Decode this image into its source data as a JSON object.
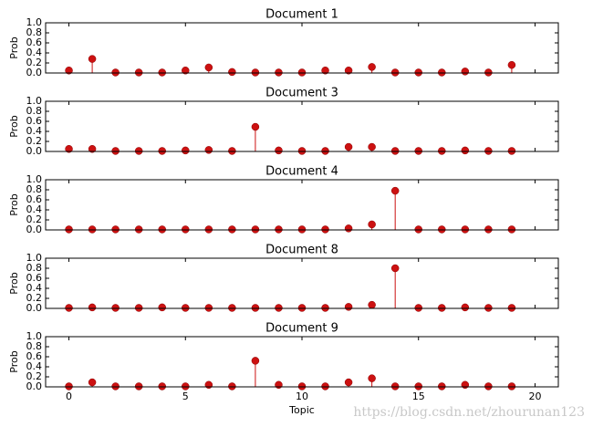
{
  "chart_data": [
    {
      "type": "stem",
      "title": "Document 1",
      "ylabel": "Prob",
      "color": "#cc1111",
      "x": [
        0,
        1,
        2,
        3,
        4,
        5,
        6,
        7,
        8,
        9,
        10,
        11,
        12,
        13,
        14,
        15,
        16,
        17,
        18,
        19
      ],
      "values": [
        0.05,
        0.28,
        0.01,
        0.01,
        0.01,
        0.05,
        0.11,
        0.02,
        0.01,
        0.01,
        0.01,
        0.05,
        0.05,
        0.12,
        0.01,
        0.01,
        0.01,
        0.03,
        0.01,
        0.16
      ],
      "xlim": [
        -1,
        21
      ],
      "xticks": [
        0,
        5,
        10,
        15,
        20
      ],
      "ylim": [
        0,
        1
      ],
      "yticks": [
        {
          "value": 0,
          "label": "0.0"
        },
        {
          "value": 0.2,
          "label": "0.2"
        },
        {
          "value": 0.4,
          "label": "0.4"
        },
        {
          "value": 0.6,
          "label": "0.6"
        },
        {
          "value": 0.8,
          "label": "0.8"
        },
        {
          "value": 1,
          "label": "1.0"
        }
      ]
    },
    {
      "type": "stem",
      "title": "Document 3",
      "ylabel": "Prob",
      "color": "#cc1111",
      "x": [
        0,
        1,
        2,
        3,
        4,
        5,
        6,
        7,
        8,
        9,
        10,
        11,
        12,
        13,
        14,
        15,
        16,
        17,
        18,
        19
      ],
      "values": [
        0.05,
        0.05,
        0.01,
        0.01,
        0.01,
        0.02,
        0.03,
        0.01,
        0.49,
        0.02,
        0.01,
        0.01,
        0.09,
        0.09,
        0.01,
        0.01,
        0.01,
        0.02,
        0.01,
        0.01
      ],
      "xlim": [
        -1,
        21
      ],
      "xticks": [
        0,
        5,
        10,
        15,
        20
      ],
      "ylim": [
        0,
        1
      ],
      "yticks": [
        {
          "value": 0,
          "label": "0.0"
        },
        {
          "value": 0.2,
          "label": "0.2"
        },
        {
          "value": 0.4,
          "label": "0.4"
        },
        {
          "value": 0.6,
          "label": "0.6"
        },
        {
          "value": 0.8,
          "label": "0.8"
        },
        {
          "value": 1,
          "label": "1.0"
        }
      ]
    },
    {
      "type": "stem",
      "title": "Document 4",
      "ylabel": "Prob",
      "color": "#cc1111",
      "x": [
        0,
        1,
        2,
        3,
        4,
        5,
        6,
        7,
        8,
        9,
        10,
        11,
        12,
        13,
        14,
        15,
        16,
        17,
        18,
        19
      ],
      "values": [
        0.01,
        0.01,
        0.01,
        0.01,
        0.01,
        0.01,
        0.01,
        0.01,
        0.01,
        0.01,
        0.01,
        0.01,
        0.03,
        0.11,
        0.78,
        0.01,
        0.01,
        0.01,
        0.01,
        0.01
      ],
      "xlim": [
        -1,
        21
      ],
      "xticks": [
        0,
        5,
        10,
        15,
        20
      ],
      "ylim": [
        0,
        1
      ],
      "yticks": [
        {
          "value": 0,
          "label": "0.0"
        },
        {
          "value": 0.2,
          "label": "0.2"
        },
        {
          "value": 0.4,
          "label": "0.4"
        },
        {
          "value": 0.6,
          "label": "0.6"
        },
        {
          "value": 0.8,
          "label": "0.8"
        },
        {
          "value": 1,
          "label": "1.0"
        }
      ]
    },
    {
      "type": "stem",
      "title": "Document 8",
      "ylabel": "Prob",
      "color": "#cc1111",
      "x": [
        0,
        1,
        2,
        3,
        4,
        5,
        6,
        7,
        8,
        9,
        10,
        11,
        12,
        13,
        14,
        15,
        16,
        17,
        18,
        19
      ],
      "values": [
        0.01,
        0.02,
        0.01,
        0.01,
        0.02,
        0.01,
        0.01,
        0.01,
        0.01,
        0.01,
        0.01,
        0.01,
        0.03,
        0.07,
        0.8,
        0.01,
        0.01,
        0.02,
        0.01,
        0.01
      ],
      "xlim": [
        -1,
        21
      ],
      "xticks": [
        0,
        5,
        10,
        15,
        20
      ],
      "ylim": [
        0,
        1
      ],
      "yticks": [
        {
          "value": 0,
          "label": "0.0"
        },
        {
          "value": 0.2,
          "label": "0.2"
        },
        {
          "value": 0.4,
          "label": "0.4"
        },
        {
          "value": 0.6,
          "label": "0.6"
        },
        {
          "value": 0.8,
          "label": "0.8"
        },
        {
          "value": 1,
          "label": "1.0"
        }
      ]
    },
    {
      "type": "stem",
      "title": "Document 9",
      "ylabel": "Prob",
      "xlabel": "Topic",
      "color": "#cc1111",
      "x": [
        0,
        1,
        2,
        3,
        4,
        5,
        6,
        7,
        8,
        9,
        10,
        11,
        12,
        13,
        14,
        15,
        16,
        17,
        18,
        19
      ],
      "values": [
        0.01,
        0.09,
        0.01,
        0.01,
        0.01,
        0.01,
        0.04,
        0.01,
        0.52,
        0.04,
        0.01,
        0.01,
        0.09,
        0.17,
        0.01,
        0.01,
        0.01,
        0.04,
        0.01,
        0.01
      ],
      "xlim": [
        -1,
        21
      ],
      "xticks": [
        0,
        5,
        10,
        15,
        20
      ],
      "ylim": [
        0,
        1
      ],
      "yticks": [
        {
          "value": 0,
          "label": "0.0"
        },
        {
          "value": 0.2,
          "label": "0.2"
        },
        {
          "value": 0.4,
          "label": "0.4"
        },
        {
          "value": 0.6,
          "label": "0.6"
        },
        {
          "value": 0.8,
          "label": "0.8"
        },
        {
          "value": 1,
          "label": "1.0"
        }
      ]
    }
  ],
  "watermark": "https://blog.csdn.net/zhourunan123"
}
